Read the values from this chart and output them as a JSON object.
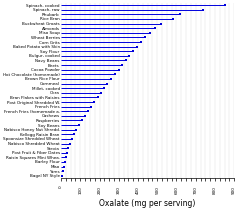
{
  "categories": [
    "Spinach, cooked",
    "Spinach, raw",
    "Rhubarb",
    "Rice Bran",
    "Buckwheat Groats",
    "Almonds",
    "Miso Soup",
    "Wheat Berries",
    "Corn Grits",
    "Baked Potato with Skin",
    "Soy Flour",
    "Bulgur, cooked",
    "Navy Beans",
    "Beets",
    "Cocoa Powder",
    "Hot Chocolate (homemade)",
    "Brown Rice Flour",
    "Cornmeal",
    "Millet, cooked",
    "Okra",
    "Bran Flakes with Raisins",
    "Post Original Shredded W.",
    "French Fries",
    "French Fries (homemade a.",
    "Cashews",
    "Raspberries",
    "Soy Beans",
    "Nabisco Honey Nut Shredd.",
    "Kellogg Raisin Bran",
    "Spoonsize Shredded Wheat",
    "Nabisco Shredded Wheat",
    "Stevia",
    "Post Fruit & Fiber Dates",
    "Raisin Squares Mini Whea.",
    "Barley Flour",
    "Miso",
    "Yams",
    "Bagel NY Style"
  ],
  "values": [
    850,
    740,
    620,
    580,
    520,
    490,
    460,
    435,
    415,
    395,
    375,
    355,
    335,
    318,
    300,
    280,
    260,
    240,
    225,
    208,
    190,
    172,
    158,
    140,
    122,
    108,
    92,
    80,
    68,
    57,
    47,
    38,
    30,
    24,
    18,
    13,
    9,
    4
  ],
  "bar_color": "#0000dd",
  "marker_color": "#0000dd",
  "bg_color": "#ffffff",
  "xlabel": "Oxalate (mg per serving)",
  "xlim": [
    0,
    900
  ],
  "xtick_step": 25,
  "tick_fontsize": 3.0,
  "xlabel_fontsize": 5.5,
  "linewidth": 0.7,
  "markersize": 1.8
}
